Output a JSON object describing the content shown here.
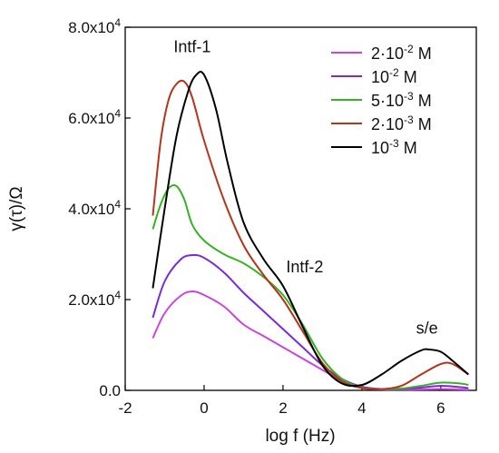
{
  "chart_data": {
    "type": "line",
    "title": "",
    "xlabel": "log f (Hz)",
    "ylabel": "γ(τ)/Ω",
    "xlim": [
      -2.0,
      6.9
    ],
    "ylim": [
      0,
      80000
    ],
    "x_ticks": [
      {
        "value": -2,
        "label": "-2"
      },
      {
        "value": 0,
        "label": "0"
      },
      {
        "value": 2,
        "label": "2"
      },
      {
        "value": 4,
        "label": "4"
      },
      {
        "value": 6,
        "label": "6"
      }
    ],
    "y_ticks": [
      {
        "value": 0,
        "mantissa": "0.0",
        "exp": ""
      },
      {
        "value": 20000,
        "mantissa": "2.0x10",
        "exp": "4"
      },
      {
        "value": 40000,
        "mantissa": "4.0x10",
        "exp": "4"
      },
      {
        "value": 60000,
        "mantissa": "6.0x10",
        "exp": "4"
      },
      {
        "value": 80000,
        "mantissa": "8.0x10",
        "exp": "4"
      }
    ],
    "grid": false,
    "legend_position": "top-right",
    "annotations": [
      {
        "text": "Intf-1",
        "x": -0.3,
        "y": 74500
      },
      {
        "text": "Intf-2",
        "x": 2.55,
        "y": 26000
      },
      {
        "text": "s/e",
        "x": 5.65,
        "y": 12500
      }
    ],
    "series": [
      {
        "name": "2·10-2 M",
        "legend": {
          "mantissa": "2·10",
          "exp": "-2",
          "unit": " M"
        },
        "color": "#cc44dd",
        "x": [
          -1.3,
          -1.0,
          -0.6,
          -0.3,
          0.0,
          0.5,
          1.0,
          1.5,
          2.0,
          2.5,
          3.0,
          3.5,
          4.0,
          4.5,
          5.0,
          5.5,
          6.0,
          6.5,
          6.7
        ],
        "y": [
          11500,
          17000,
          20800,
          21800,
          21000,
          18500,
          14500,
          12000,
          9500,
          7000,
          4500,
          2000,
          600,
          200,
          150,
          200,
          300,
          200,
          150
        ]
      },
      {
        "name": "10-2 M",
        "legend": {
          "mantissa": "10",
          "exp": "-2",
          "unit": " M"
        },
        "color": "#7a2bd6",
        "x": [
          -1.3,
          -1.0,
          -0.6,
          -0.3,
          0.0,
          0.5,
          1.0,
          1.5,
          2.0,
          2.5,
          3.0,
          3.5,
          4.0,
          4.5,
          5.0,
          5.5,
          6.0,
          6.5,
          6.7
        ],
        "y": [
          16000,
          24000,
          28800,
          29800,
          29200,
          26000,
          21500,
          17500,
          13500,
          9500,
          5500,
          2500,
          800,
          300,
          250,
          600,
          1000,
          700,
          500
        ]
      },
      {
        "name": "5·10-3 M",
        "legend": {
          "mantissa": "5·10",
          "exp": "-3",
          "unit": " M"
        },
        "color": "#36b324",
        "x": [
          -1.3,
          -1.1,
          -0.9,
          -0.7,
          -0.5,
          -0.3,
          0.0,
          0.5,
          1.0,
          1.5,
          2.0,
          2.5,
          3.0,
          3.5,
          4.0,
          4.5,
          5.0,
          5.5,
          6.0,
          6.5,
          6.7
        ],
        "y": [
          35500,
          41000,
          44500,
          45000,
          42000,
          36500,
          33000,
          30000,
          28000,
          25000,
          21000,
          14500,
          7000,
          2500,
          600,
          300,
          400,
          1000,
          1700,
          1500,
          1200
        ]
      },
      {
        "name": "2·10-3 M",
        "legend": {
          "mantissa": "2·10",
          "exp": "-3",
          "unit": " M"
        },
        "color": "#b5341a",
        "x": [
          -1.3,
          -1.1,
          -0.9,
          -0.7,
          -0.5,
          -0.3,
          0.0,
          0.5,
          1.0,
          1.5,
          2.0,
          2.5,
          3.0,
          3.5,
          4.0,
          4.5,
          5.0,
          5.5,
          6.0,
          6.3,
          6.7
        ],
        "y": [
          38500,
          55000,
          64000,
          67500,
          68000,
          64500,
          55000,
          42000,
          32000,
          25500,
          20000,
          13000,
          6000,
          2000,
          500,
          300,
          1000,
          3500,
          5800,
          5800,
          3500
        ]
      },
      {
        "name": "10-3 M",
        "legend": {
          "mantissa": "10",
          "exp": "-3",
          "unit": " M"
        },
        "color": "#000000",
        "x": [
          -1.3,
          -1.0,
          -0.7,
          -0.4,
          -0.2,
          0.0,
          0.3,
          0.6,
          1.0,
          1.5,
          2.0,
          2.5,
          3.0,
          3.5,
          4.0,
          4.5,
          5.0,
          5.5,
          5.7,
          6.0,
          6.3,
          6.7
        ],
        "y": [
          22500,
          40000,
          56000,
          66000,
          69500,
          69500,
          62000,
          50000,
          37000,
          29000,
          23000,
          14000,
          5500,
          1500,
          1200,
          3500,
          6500,
          8800,
          9000,
          8500,
          6500,
          3500
        ]
      }
    ]
  }
}
